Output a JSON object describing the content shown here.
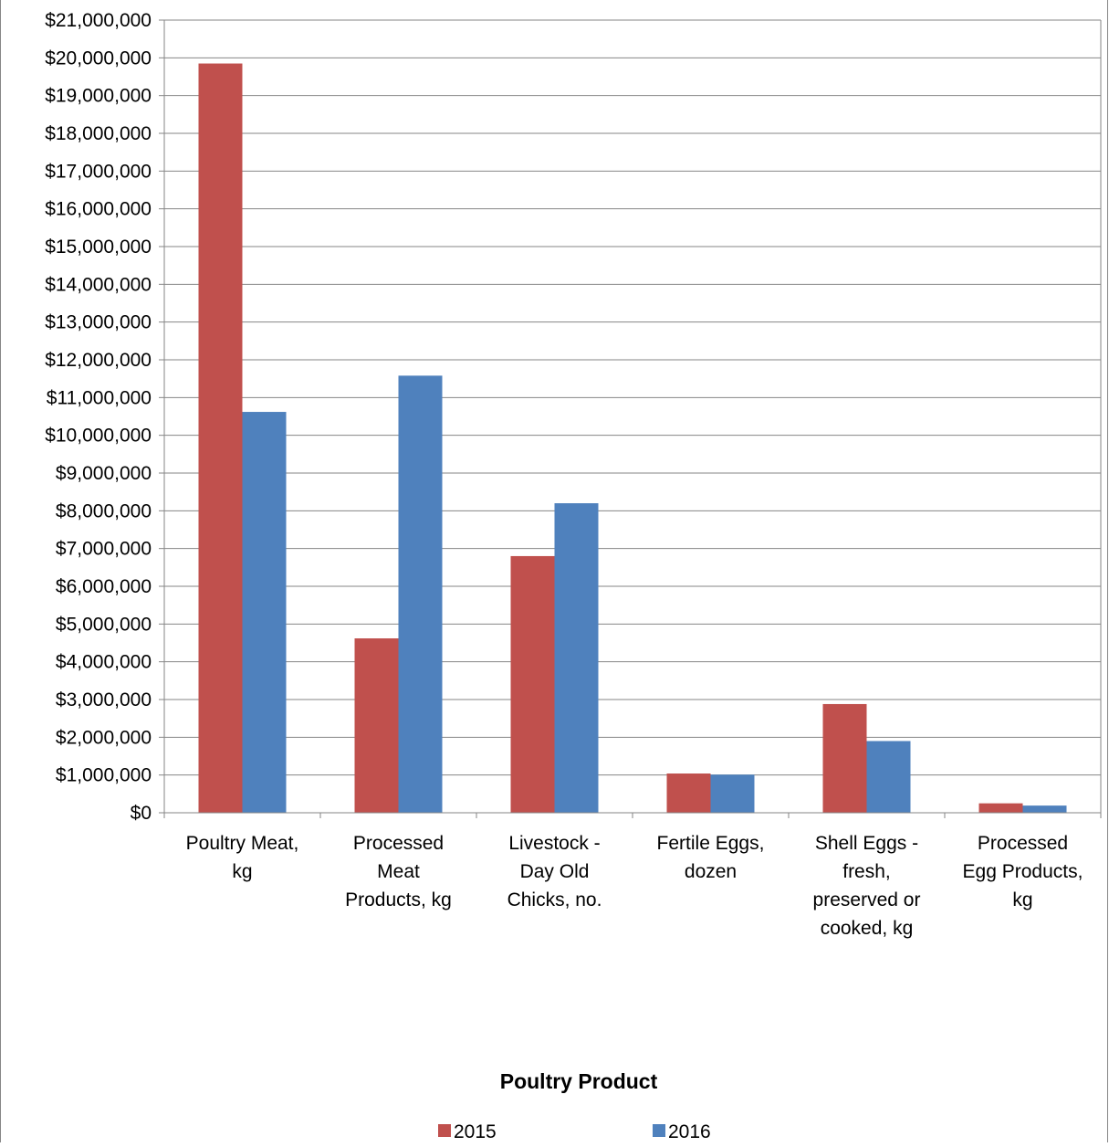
{
  "chart_data": {
    "type": "bar",
    "title": "",
    "xlabel": "Poultry Product",
    "ylabel": "",
    "ylim": [
      0,
      21000000
    ],
    "ytick_step": 1000000,
    "ytick_labels": [
      "$0",
      "$1,000,000",
      "$2,000,000",
      "$3,000,000",
      "$4,000,000",
      "$5,000,000",
      "$6,000,000",
      "$7,000,000",
      "$8,000,000",
      "$9,000,000",
      "$10,000,000",
      "$11,000,000",
      "$12,000,000",
      "$13,000,000",
      "$14,000,000",
      "$15,000,000",
      "$16,000,000",
      "$17,000,000",
      "$18,000,000",
      "$19,000,000",
      "$20,000,000",
      "$21,000,000"
    ],
    "grid": true,
    "legend_position": "bottom",
    "categories": [
      [
        "Poultry Meat,",
        "kg"
      ],
      [
        "Processed",
        "Meat",
        "Products, kg"
      ],
      [
        "Livestock -",
        "Day Old",
        "Chicks, no."
      ],
      [
        "Fertile Eggs,",
        "dozen"
      ],
      [
        "Shell Eggs -",
        "fresh,",
        "preserved or",
        "cooked, kg"
      ],
      [
        "Processed",
        "Egg Products,",
        "kg"
      ]
    ],
    "series": [
      {
        "name": "2015",
        "color": "#c0504d",
        "values": [
          19850000,
          4620000,
          6800000,
          1040000,
          2880000,
          250000
        ]
      },
      {
        "name": "2016",
        "color": "#4f81bd",
        "values": [
          10620000,
          11580000,
          8200000,
          1010000,
          1900000,
          190000
        ]
      }
    ]
  }
}
